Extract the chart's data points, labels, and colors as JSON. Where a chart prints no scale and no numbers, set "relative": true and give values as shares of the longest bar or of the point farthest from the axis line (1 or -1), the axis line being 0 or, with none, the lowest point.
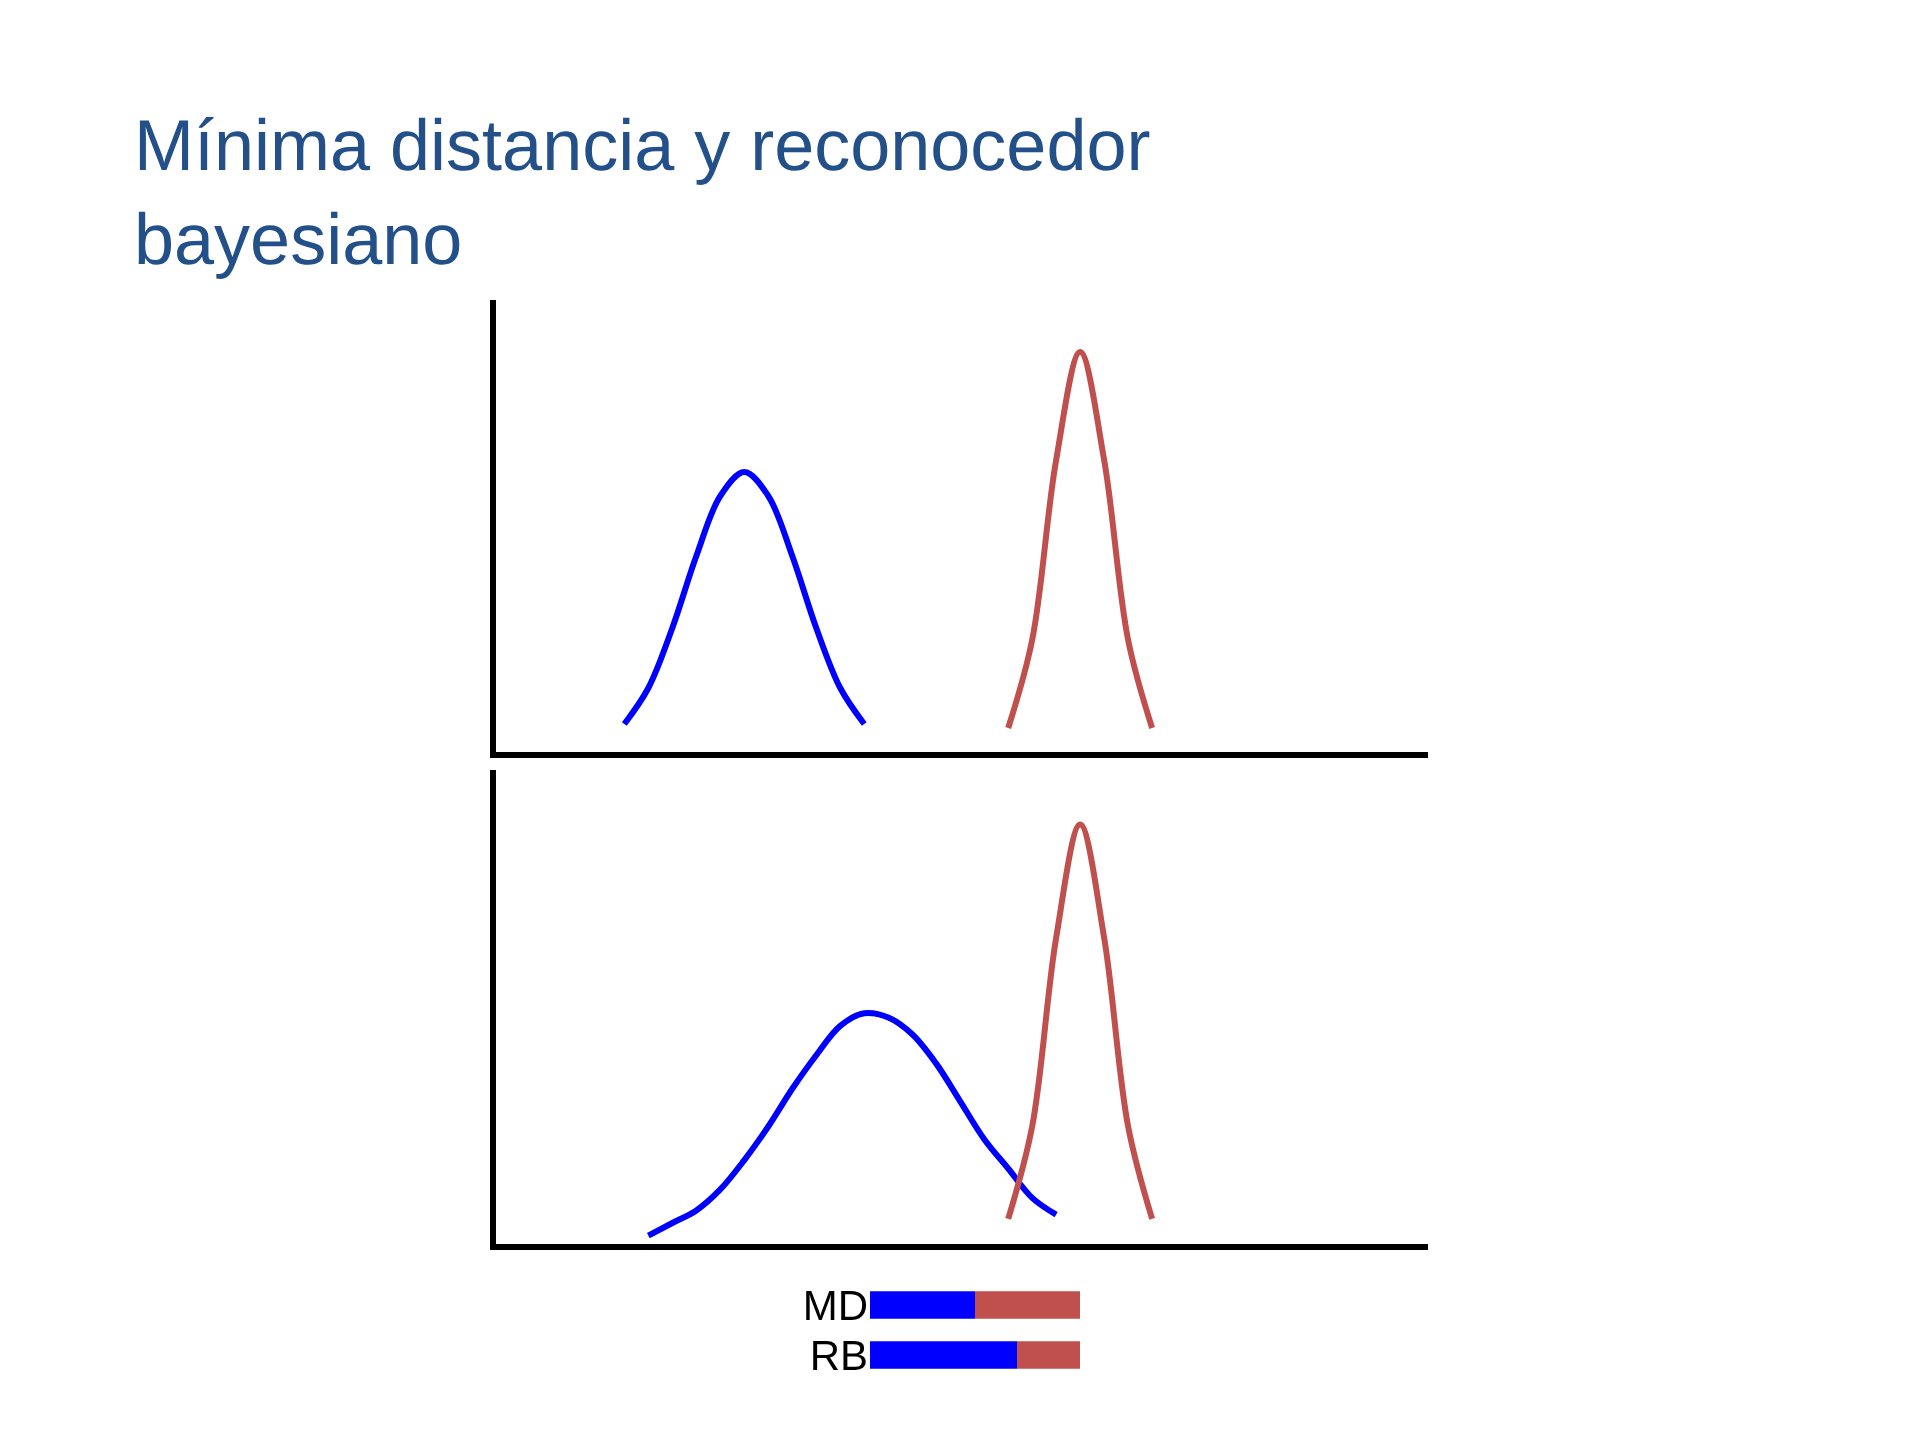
{
  "chart_data": [
    {
      "type": "line",
      "title": "Mínima distancia y reconocedor bayesiano",
      "relative": true,
      "categories": [
        null,
        null,
        null,
        null,
        null,
        null,
        null,
        null,
        null,
        null,
        null,
        null,
        null,
        null,
        null,
        null,
        null,
        null,
        null,
        null,
        null,
        null,
        null,
        null,
        null,
        null,
        null,
        null,
        null,
        null,
        null,
        null,
        null,
        null,
        null,
        null,
        null,
        null,
        null
      ],
      "series": [
        {
          "color": "#0000ff",
          "values": [
            null,
            null,
            null,
            null,
            null,
            0.07,
            0.16,
            0.31,
            0.49,
            0.64,
            0.7,
            0.64,
            0.49,
            0.31,
            0.16,
            0.07,
            null,
            null,
            null,
            null,
            null,
            null,
            null,
            null,
            null,
            null,
            null,
            null,
            null,
            null,
            null,
            null,
            null,
            null,
            null,
            null,
            null,
            null,
            null
          ]
        },
        {
          "color": "#c0504d",
          "values": [
            null,
            null,
            null,
            null,
            null,
            null,
            null,
            null,
            null,
            null,
            null,
            null,
            null,
            null,
            null,
            null,
            null,
            null,
            null,
            null,
            null,
            0.06,
            0.28,
            0.73,
            1,
            0.73,
            0.28,
            0.06,
            null,
            null,
            null,
            null,
            null,
            null,
            null,
            null,
            null,
            null,
            null
          ]
        }
      ]
    },
    {
      "type": "line",
      "relative": true,
      "categories": [
        null,
        null,
        null,
        null,
        null,
        null,
        null,
        null,
        null,
        null,
        null,
        null,
        null,
        null,
        null,
        null,
        null,
        null,
        null,
        null,
        null,
        null,
        null,
        null,
        null,
        null,
        null,
        null,
        null,
        null,
        null,
        null,
        null,
        null,
        null,
        null,
        null,
        null,
        null
      ],
      "series": [
        {
          "color": "#0000ff",
          "values": [
            null,
            null,
            null,
            null,
            null,
            null,
            0.02,
            0.05,
            0.08,
            0.13,
            0.2,
            0.28,
            0.37,
            0.45,
            0.52,
            0.55,
            0.54,
            0.5,
            0.43,
            0.34,
            0.25,
            0.18,
            0.11,
            0.07,
            null,
            null,
            null,
            null,
            null,
            null,
            null,
            null,
            null,
            null,
            null,
            null,
            null,
            null,
            null
          ]
        },
        {
          "color": "#c0504d",
          "values": [
            null,
            null,
            null,
            null,
            null,
            null,
            null,
            null,
            null,
            null,
            null,
            null,
            null,
            null,
            null,
            null,
            null,
            null,
            null,
            null,
            null,
            0.06,
            0.28,
            0.73,
            1,
            0.73,
            0.28,
            0.06,
            null,
            null,
            null,
            null,
            null,
            null,
            null,
            null,
            null,
            null,
            null
          ]
        }
      ]
    },
    {
      "type": "bar",
      "orientation": "horizontal",
      "stacked": true,
      "relative": true,
      "categories": [
        "MD",
        "RB"
      ],
      "series": [
        {
          "color": "#0000ff",
          "values": [
            0.5,
            0.7
          ]
        },
        {
          "color": "#c0504d",
          "values": [
            0.5,
            0.3
          ]
        }
      ]
    }
  ]
}
